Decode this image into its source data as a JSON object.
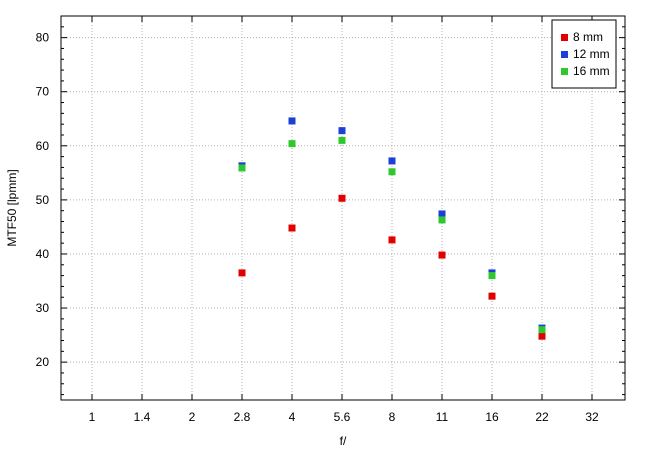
{
  "chart_data": {
    "type": "scatter",
    "title": "",
    "xlabel": "f/",
    "ylabel": "MTF50 [lpmm]",
    "x_ticks": [
      "1",
      "1.4",
      "2",
      "2.8",
      "4",
      "5.6",
      "8",
      "11",
      "16",
      "22",
      "32"
    ],
    "x_scale": "aperture stops (log)",
    "ylim": [
      13,
      84
    ],
    "y_ticks": [
      20,
      30,
      40,
      50,
      60,
      70,
      80
    ],
    "grid": true,
    "legend_position": "top-right",
    "series": [
      {
        "name": "8 mm",
        "color": "#e00000",
        "points": [
          {
            "x": "2.8",
            "y": 36.5
          },
          {
            "x": "4",
            "y": 44.8
          },
          {
            "x": "5.6",
            "y": 50.3
          },
          {
            "x": "8",
            "y": 42.6
          },
          {
            "x": "11",
            "y": 39.8
          },
          {
            "x": "16",
            "y": 32.2
          },
          {
            "x": "22",
            "y": 24.8
          }
        ]
      },
      {
        "name": "12 mm",
        "color": "#1c3fd6",
        "points": [
          {
            "x": "2.8",
            "y": 56.3
          },
          {
            "x": "4",
            "y": 64.6
          },
          {
            "x": "5.6",
            "y": 62.8
          },
          {
            "x": "8",
            "y": 57.2
          },
          {
            "x": "11",
            "y": 47.4
          },
          {
            "x": "16",
            "y": 36.5
          },
          {
            "x": "22",
            "y": 26.3
          }
        ]
      },
      {
        "name": "16 mm",
        "color": "#2ec82e",
        "points": [
          {
            "x": "2.8",
            "y": 55.9
          },
          {
            "x": "4",
            "y": 60.4
          },
          {
            "x": "5.6",
            "y": 61.0
          },
          {
            "x": "8",
            "y": 55.2
          },
          {
            "x": "11",
            "y": 46.3
          },
          {
            "x": "16",
            "y": 36.0
          },
          {
            "x": "22",
            "y": 26.0
          }
        ]
      }
    ]
  }
}
